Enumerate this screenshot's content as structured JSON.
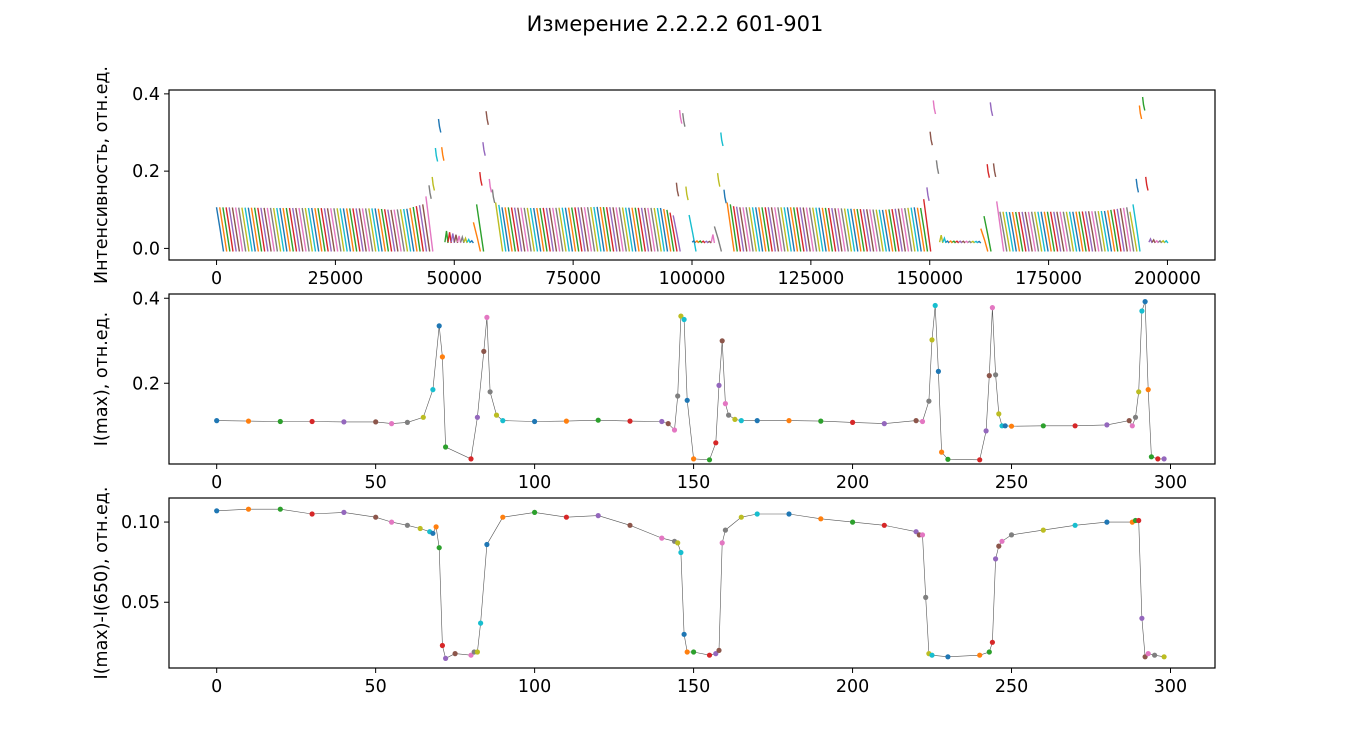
{
  "title": "Измерение 2.2.2.2 601-901",
  "palette": [
    "#1f77b4",
    "#ff7f0e",
    "#2ca02c",
    "#d62728",
    "#9467bd",
    "#8c564b",
    "#e377c2",
    "#7f7f7f",
    "#bcbd22",
    "#17becf"
  ],
  "chart_data": [
    {
      "type": "line",
      "ylabel": "Интенсивность, отн.ед.",
      "xlabel": "",
      "xlim": [
        -10000,
        210000
      ],
      "ylim": [
        -0.03,
        0.41
      ],
      "xticks": [
        0,
        25000,
        50000,
        75000,
        100000,
        125000,
        150000,
        175000,
        200000
      ],
      "xtick_labels": [
        "0",
        "25000",
        "50000",
        "75000",
        "100000",
        "125000",
        "150000",
        "175000",
        "200000"
      ],
      "yticks": [
        0.0,
        0.2,
        0.4
      ],
      "ytick_labels": [
        "0.0",
        "0.2",
        "0.4"
      ],
      "description_of_series": "300 spectra, each plotted as a short multi-colored segment; segment peak follows panel 2 I(max) values",
      "segments_per_spectrum_x_span": 667
    },
    {
      "type": "scatter",
      "ylabel": "I(max), отн.ед.",
      "xlabel": "",
      "xlim": [
        -15,
        314
      ],
      "ylim": [
        0.01,
        0.41
      ],
      "xticks": [
        0,
        50,
        100,
        150,
        200,
        250,
        300
      ],
      "xtick_labels": [
        "0",
        "50",
        "100",
        "150",
        "200",
        "250",
        "300"
      ],
      "yticks": [
        0.2,
        0.4
      ],
      "ytick_labels": [
        "0.2",
        "0.4"
      ],
      "x": [
        0,
        10,
        20,
        30,
        40,
        50,
        55,
        60,
        65,
        68,
        70,
        71,
        72,
        80,
        82,
        84,
        85,
        86,
        88,
        90,
        100,
        110,
        120,
        130,
        140,
        142,
        144,
        145,
        146,
        147,
        148,
        150,
        155,
        157,
        158,
        159,
        160,
        161,
        163,
        165,
        170,
        180,
        190,
        200,
        210,
        220,
        222,
        224,
        225,
        226,
        227,
        228,
        230,
        240,
        242,
        243,
        244,
        245,
        246,
        247,
        248,
        250,
        260,
        270,
        280,
        287,
        288,
        289,
        290,
        291,
        292,
        293,
        294,
        296,
        298
      ],
      "y": [
        0.112,
        0.111,
        0.11,
        0.11,
        0.109,
        0.109,
        0.105,
        0.108,
        0.12,
        0.185,
        0.335,
        0.262,
        0.05,
        0.022,
        0.12,
        0.275,
        0.355,
        0.18,
        0.125,
        0.112,
        0.11,
        0.111,
        0.113,
        0.111,
        0.11,
        0.105,
        0.09,
        0.17,
        0.358,
        0.35,
        0.16,
        0.022,
        0.02,
        0.06,
        0.195,
        0.3,
        0.152,
        0.125,
        0.115,
        0.112,
        0.112,
        0.112,
        0.111,
        0.108,
        0.105,
        0.112,
        0.11,
        0.158,
        0.302,
        0.383,
        0.228,
        0.038,
        0.021,
        0.02,
        0.088,
        0.218,
        0.378,
        0.22,
        0.128,
        0.1,
        0.1,
        0.099,
        0.1,
        0.1,
        0.102,
        0.112,
        0.1,
        0.12,
        0.18,
        0.37,
        0.392,
        0.185,
        0.027,
        0.022,
        0.022
      ]
    },
    {
      "type": "scatter",
      "ylabel": "I(max)-I(650), отн.ед.",
      "xlabel": "",
      "xlim": [
        -15,
        314
      ],
      "ylim": [
        0.009,
        0.115
      ],
      "xticks": [
        0,
        50,
        100,
        150,
        200,
        250,
        300
      ],
      "xtick_labels": [
        "0",
        "50",
        "100",
        "150",
        "200",
        "250",
        "300"
      ],
      "yticks": [
        0.05,
        0.1
      ],
      "ytick_labels": [
        "0.05",
        "0.10"
      ],
      "x": [
        0,
        10,
        20,
        30,
        40,
        50,
        55,
        60,
        64,
        67,
        68,
        69,
        70,
        71,
        72,
        75,
        80,
        81,
        82,
        83,
        85,
        90,
        100,
        110,
        120,
        130,
        140,
        144,
        145,
        146,
        147,
        148,
        150,
        155,
        157,
        158,
        159,
        160,
        165,
        170,
        180,
        190,
        200,
        210,
        220,
        221,
        222,
        223,
        224,
        225,
        230,
        240,
        243,
        244,
        245,
        246,
        247,
        250,
        260,
        270,
        280,
        288,
        289,
        290,
        291,
        292,
        293,
        295,
        298
      ],
      "y": [
        0.107,
        0.108,
        0.108,
        0.105,
        0.106,
        0.103,
        0.1,
        0.098,
        0.096,
        0.094,
        0.093,
        0.097,
        0.084,
        0.023,
        0.015,
        0.018,
        0.017,
        0.019,
        0.019,
        0.037,
        0.086,
        0.103,
        0.106,
        0.103,
        0.104,
        0.098,
        0.09,
        0.088,
        0.087,
        0.081,
        0.03,
        0.019,
        0.019,
        0.017,
        0.018,
        0.02,
        0.087,
        0.095,
        0.103,
        0.105,
        0.105,
        0.102,
        0.1,
        0.098,
        0.094,
        0.092,
        0.092,
        0.053,
        0.018,
        0.017,
        0.016,
        0.017,
        0.019,
        0.025,
        0.077,
        0.085,
        0.088,
        0.092,
        0.095,
        0.098,
        0.1,
        0.1,
        0.101,
        0.101,
        0.04,
        0.016,
        0.018,
        0.017,
        0.016
      ]
    }
  ]
}
